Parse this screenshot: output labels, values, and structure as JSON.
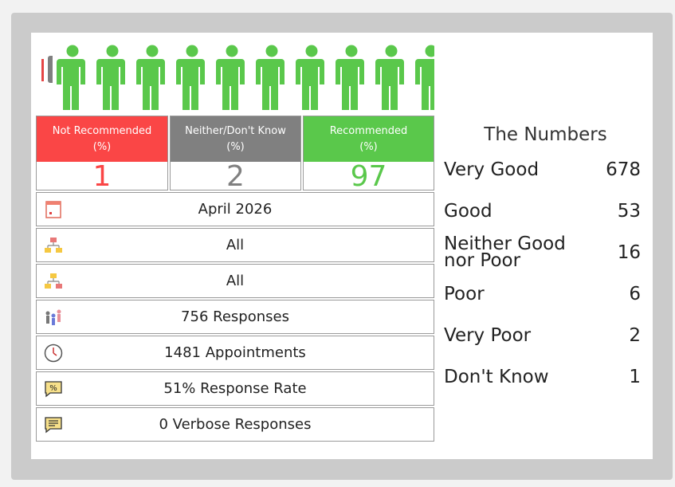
{
  "recommend": {
    "not": {
      "label": "Not Recommended",
      "unit": "(%)",
      "value": "1",
      "color": "#fa4646"
    },
    "neither": {
      "label": "Neither/Don't Know",
      "unit": "(%)",
      "value": "2",
      "color": "#808080"
    },
    "yes": {
      "label": "Recommended",
      "unit": "(%)",
      "value": "97",
      "color": "#5ac84b"
    }
  },
  "info": {
    "date": "April 2026",
    "filter1": "All",
    "filter2": "All",
    "responses": "756 Responses",
    "appointments": "1481 Appointments",
    "response_rate": "51% Response Rate",
    "verbose": "0 Verbose Responses"
  },
  "numbers": {
    "title": "The Numbers",
    "rows": [
      {
        "label": "Very Good",
        "value": "678"
      },
      {
        "label": "Good",
        "value": "53"
      },
      {
        "label": "Neither Good nor Poor",
        "value": "16"
      },
      {
        "label": "Poor",
        "value": "6"
      },
      {
        "label": "Very Poor",
        "value": "2"
      },
      {
        "label": "Don't Know",
        "value": "1"
      }
    ]
  },
  "icons": {
    "person": "person-icon",
    "calendar": "calendar-icon",
    "org": "org-chart-icon",
    "people": "people-icon",
    "clock": "clock-icon",
    "percent": "percent-speech-icon",
    "comment": "comment-icon"
  }
}
